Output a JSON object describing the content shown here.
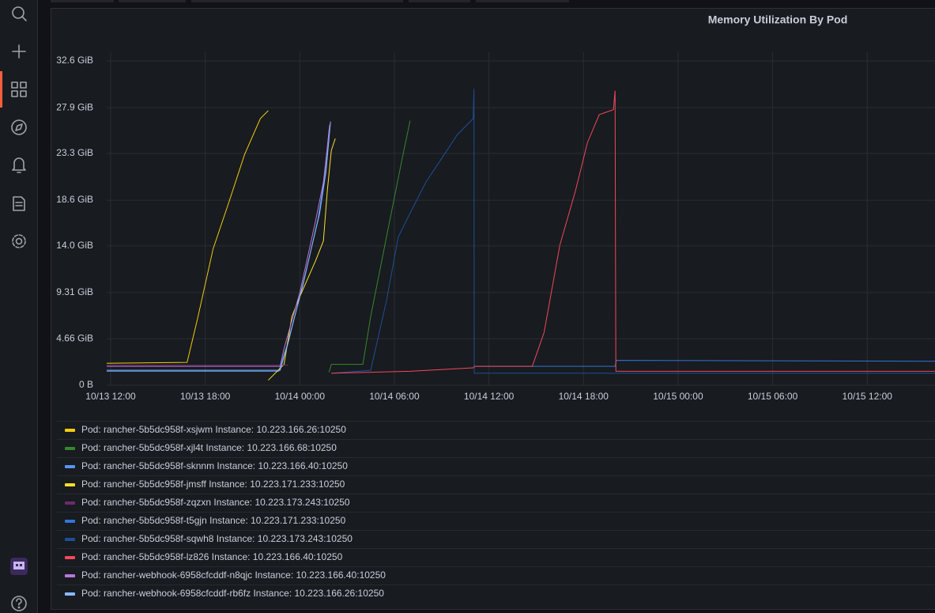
{
  "chart_data": {
    "type": "line",
    "title": "Memory Utilization By Pod",
    "xlim": [
      "10/13 11:45",
      "10/15 16:18"
    ],
    "xticks": [
      "10/13 12:00",
      "10/13 18:00",
      "10/14 00:00",
      "10/14 06:00",
      "10/14 12:00",
      "10/14 18:00",
      "10/15 00:00",
      "10/15 06:00",
      "10/15 12:00"
    ],
    "ylim": [
      0,
      32.6
    ],
    "yticks": [
      {
        "value": 0,
        "label": "0 B"
      },
      {
        "value": 4.66,
        "label": "4.66 GiB"
      },
      {
        "value": 9.31,
        "label": "9.31 GiB"
      },
      {
        "value": 14.0,
        "label": "14.0 GiB"
      },
      {
        "value": 18.6,
        "label": "18.6 GiB"
      },
      {
        "value": 23.3,
        "label": "23.3 GiB"
      },
      {
        "value": 27.9,
        "label": "27.9 GiB"
      },
      {
        "value": 32.6,
        "label": "32.6 GiB"
      }
    ],
    "grid": true,
    "legend": "bottom",
    "series": [
      {
        "name": "Pod: rancher-5b5dc958f-xsjwm Instance: 10.223.166.26:10250",
        "color": "#F2CC0C",
        "x": [
          "10/13 11:30",
          "10/13 16:51",
          "10/13 17:30",
          "10/13 18:30",
          "10/13 19:30",
          "10/13 20:30",
          "10/13 21:30",
          "10/13 22:00"
        ],
        "values": [
          2.2,
          2.3,
          6.6,
          13.7,
          18.4,
          23.2,
          26.8,
          27.6
        ]
      },
      {
        "name": "Pod: rancher-5b5dc958f-xjl4t Instance: 10.223.166.68:10250",
        "color": "#37872D",
        "x": [
          "10/14 01:51",
          "10/14 02:00",
          "10/14 04:00",
          "10/14 04:30",
          "10/14 05:30",
          "10/14 06:30",
          "10/14 07:00"
        ],
        "values": [
          1.3,
          2.1,
          2.1,
          6.9,
          14.9,
          22.8,
          26.6
        ]
      },
      {
        "name": "Pod: rancher-5b5dc958f-sknnm Instance: 10.223.166.40:10250",
        "color": "#5794F2",
        "x": [
          "10/13 11:30",
          "10/13 22:40",
          "10/13 23:10",
          "10/14 00:10",
          "10/14 01:10",
          "10/14 01:35",
          "10/14 01:52"
        ],
        "values": [
          1.4,
          1.4,
          3.9,
          9.8,
          16.8,
          21.0,
          25.8
        ]
      },
      {
        "name": "Pod: rancher-5b5dc958f-jmsff Instance: 10.223.171.233:10250",
        "color": "#FADE2A",
        "x": [
          "10/13 22:00",
          "10/13 23:00",
          "10/13 23:30",
          "10/14 00:00",
          "10/14 01:00",
          "10/14 01:30",
          "10/14 01:45",
          "10/14 02:00",
          "10/14 02:15"
        ],
        "values": [
          0.5,
          2.1,
          6.9,
          8.9,
          12.5,
          14.5,
          19.6,
          23.6,
          24.8
        ]
      },
      {
        "name": "Pod: rancher-5b5dc958f-zqzxn Instance: 10.223.173.243:10250",
        "color": "#6E2A6E",
        "x": [
          "10/13 11:30",
          "10/13 23:15"
        ],
        "values": [
          2.0,
          2.0
        ]
      },
      {
        "name": "Pod: rancher-5b5dc958f-t5gjn Instance: 10.223.171.233:10250",
        "color": "#3274D9",
        "x": [
          "10/14 11:04",
          "10/14 20:00",
          "10/14 20:05",
          "10/15 16:30"
        ],
        "values": [
          1.9,
          1.9,
          2.5,
          2.4
        ]
      },
      {
        "name": "Pod: rancher-5b5dc958f-sqwh8 Instance: 10.223.173.243:10250",
        "color": "#1F4E99",
        "x": [
          "10/14 02:00",
          "10/14 04:30",
          "10/14 05:30",
          "10/14 06:15",
          "10/14 07:00",
          "10/14 08:00",
          "10/14 09:00",
          "10/14 10:00",
          "10/14 11:00",
          "10/14 11:03",
          "10/14 11:04",
          "10/15 16:30"
        ],
        "values": [
          1.2,
          1.5,
          8.5,
          14.9,
          17.3,
          20.4,
          22.8,
          25.2,
          26.8,
          29.8,
          1.2,
          1.2
        ]
      },
      {
        "name": "Pod: rancher-5b5dc958f-lz826 Instance: 10.223.166.40:10250",
        "color": "#F2495C",
        "x": [
          "10/14 02:00",
          "10/14 07:00",
          "10/14 11:00",
          "10/14 11:06",
          "10/14 14:45",
          "10/14 15:30",
          "10/14 16:30",
          "10/14 17:30",
          "10/14 18:15",
          "10/14 19:00",
          "10/14 19:54",
          "10/14 20:00",
          "10/14 20:03",
          "10/15 16:30"
        ],
        "values": [
          1.2,
          1.4,
          1.75,
          1.9,
          1.9,
          5.3,
          14.1,
          19.6,
          24.4,
          27.2,
          27.7,
          29.6,
          1.4,
          1.4
        ]
      },
      {
        "name": "Pod: rancher-webhook-6958cfcddf-n8qjc Instance: 10.223.166.40:10250",
        "color": "#B877D9",
        "x": [
          "10/13 11:30",
          "10/13 22:45",
          "10/13 23:00",
          "10/14 00:00",
          "10/14 01:00",
          "10/14 01:30",
          "10/14 01:54"
        ],
        "values": [
          1.9,
          1.9,
          3.7,
          9.3,
          16.5,
          20.4,
          26.2
        ]
      },
      {
        "name": "Pod: rancher-webhook-6958cfcddf-rb6fz Instance: 10.223.166.26:10250",
        "color": "#8AB8FF",
        "x": [
          "10/13 11:30",
          "10/13 22:45",
          "10/13 23:15",
          "10/14 00:15",
          "10/14 01:15",
          "10/14 01:40",
          "10/14 01:57"
        ],
        "values": [
          1.5,
          1.5,
          4.2,
          10.5,
          17.2,
          21.5,
          26.5
        ]
      }
    ]
  }
}
